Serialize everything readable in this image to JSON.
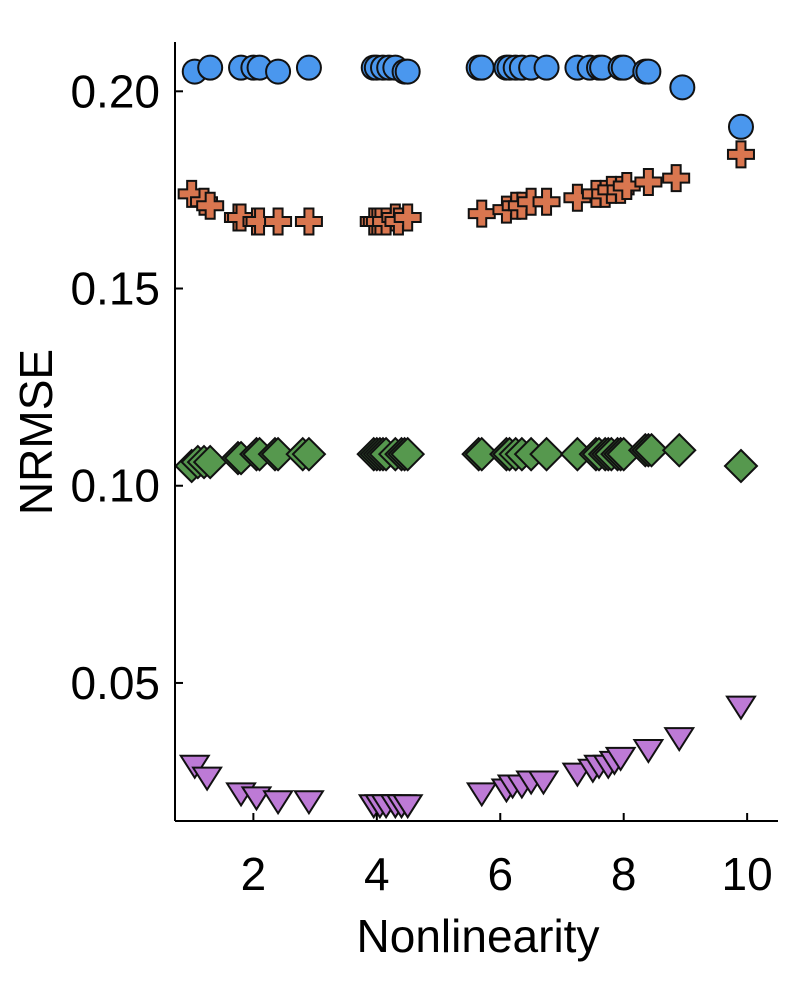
{
  "chart_data": {
    "type": "scatter",
    "title": "",
    "xlabel": "Nonlinearity",
    "ylabel": "NRMSE",
    "xlim": [
      0.73,
      10.5
    ],
    "ylim": [
      0.015,
      0.2125
    ],
    "xticks": [
      2,
      4,
      6,
      8,
      10
    ],
    "yticks": [
      0.05,
      0.1,
      0.15,
      0.2
    ],
    "xtick_labels": [
      "2",
      "4",
      "6",
      "8",
      "10"
    ],
    "ytick_labels": [
      "0.05",
      "0.10",
      "0.15",
      "0.20"
    ],
    "grid": false,
    "legend": "none",
    "series": [
      {
        "name": "circle series",
        "marker": "circle",
        "color": "#4a97ee",
        "x": [
          1.05,
          1.3,
          1.8,
          2.0,
          2.1,
          2.4,
          2.9,
          3.95,
          4.0,
          4.1,
          4.2,
          4.3,
          4.45,
          4.5,
          5.65,
          5.7,
          6.1,
          6.15,
          6.25,
          6.35,
          6.5,
          6.75,
          7.25,
          7.45,
          7.6,
          7.65,
          7.95,
          8.0,
          8.35,
          8.4,
          8.95,
          9.9
        ],
        "y": [
          0.205,
          0.206,
          0.206,
          0.206,
          0.206,
          0.205,
          0.206,
          0.206,
          0.206,
          0.206,
          0.206,
          0.206,
          0.205,
          0.205,
          0.206,
          0.206,
          0.206,
          0.206,
          0.206,
          0.206,
          0.206,
          0.206,
          0.206,
          0.206,
          0.206,
          0.206,
          0.206,
          0.206,
          0.205,
          0.205,
          0.201,
          0.191
        ]
      },
      {
        "name": "plus series",
        "marker": "plus",
        "color": "#d9764f",
        "x": [
          1.0,
          1.2,
          1.3,
          1.75,
          1.8,
          2.05,
          2.1,
          2.4,
          2.9,
          3.95,
          4.0,
          4.05,
          4.15,
          4.3,
          4.35,
          4.5,
          5.7,
          6.1,
          6.25,
          6.35,
          6.5,
          6.75,
          7.25,
          7.55,
          7.7,
          7.8,
          7.95,
          8.05,
          8.4,
          8.85
        ],
        "y": [
          0.174,
          0.172,
          0.171,
          0.168,
          0.168,
          0.167,
          0.167,
          0.167,
          0.167,
          0.167,
          0.167,
          0.167,
          0.167,
          0.168,
          0.167,
          0.168,
          0.169,
          0.17,
          0.171,
          0.171,
          0.172,
          0.172,
          0.173,
          0.174,
          0.174,
          0.175,
          0.175,
          0.176,
          0.177,
          0.178
        ],
        "outlier": {
          "x": 9.9,
          "y": 0.184
        }
      },
      {
        "name": "diamond series",
        "marker": "diamond",
        "color": "#56984e",
        "x": [
          1.0,
          1.1,
          1.2,
          1.3,
          1.75,
          1.8,
          2.05,
          2.1,
          2.35,
          2.4,
          2.8,
          2.9,
          3.95,
          4.0,
          4.05,
          4.1,
          4.15,
          4.3,
          4.4,
          4.45,
          4.5,
          5.65,
          5.7,
          6.1,
          6.15,
          6.25,
          6.35,
          6.5,
          6.75,
          7.25,
          7.55,
          7.6,
          7.7,
          7.75,
          7.8,
          7.9,
          7.95,
          8.0,
          8.35,
          8.4,
          8.45,
          8.9,
          9.9
        ],
        "y": [
          0.105,
          0.106,
          0.106,
          0.106,
          0.107,
          0.107,
          0.108,
          0.108,
          0.108,
          0.108,
          0.108,
          0.108,
          0.108,
          0.108,
          0.108,
          0.108,
          0.108,
          0.108,
          0.108,
          0.108,
          0.108,
          0.108,
          0.108,
          0.108,
          0.108,
          0.108,
          0.108,
          0.108,
          0.108,
          0.108,
          0.108,
          0.108,
          0.108,
          0.108,
          0.108,
          0.108,
          0.108,
          0.108,
          0.109,
          0.109,
          0.109,
          0.109,
          0.105
        ]
      },
      {
        "name": "triangle series",
        "marker": "triangle-down",
        "color": "#bd7ad6",
        "x": [
          1.05,
          1.25,
          1.8,
          2.05,
          2.4,
          2.9,
          3.95,
          4.05,
          4.15,
          4.3,
          4.4,
          4.5,
          5.7,
          6.1,
          6.2,
          6.35,
          6.5,
          6.7,
          7.25,
          7.5,
          7.6,
          7.75,
          7.85,
          7.95,
          8.4,
          8.9,
          9.9
        ],
        "y": [
          0.029,
          0.026,
          0.022,
          0.021,
          0.02,
          0.02,
          0.019,
          0.019,
          0.019,
          0.019,
          0.019,
          0.019,
          0.022,
          0.023,
          0.024,
          0.024,
          0.025,
          0.025,
          0.027,
          0.028,
          0.029,
          0.029,
          0.03,
          0.031,
          0.033,
          0.036,
          0.044
        ]
      }
    ]
  }
}
